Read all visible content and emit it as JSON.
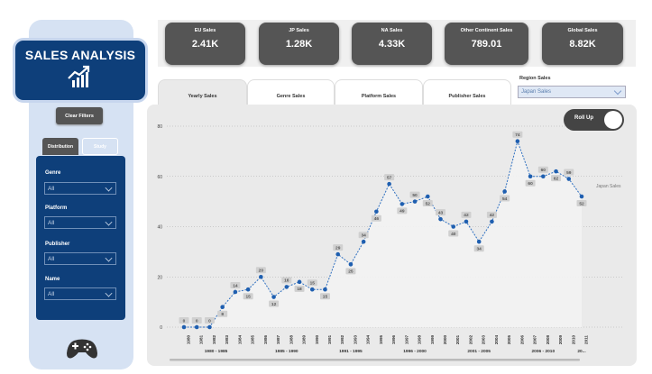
{
  "title": "SALES ANALYSIS",
  "clear_filters_label": "Clear Filters",
  "left_tabs": {
    "distribution": "Distribution",
    "study": "Study"
  },
  "filters": [
    {
      "label": "Genre",
      "value": "All"
    },
    {
      "label": "Platform",
      "value": "All"
    },
    {
      "label": "Publisher",
      "value": "All"
    },
    {
      "label": "Name",
      "value": "All"
    }
  ],
  "kpis": [
    {
      "label": "EU Sales",
      "value": "2.41K"
    },
    {
      "label": "JP Sales",
      "value": "1.28K"
    },
    {
      "label": "NA Sales",
      "value": "4.33K"
    },
    {
      "label": "Other Continent Sales",
      "value": "789.01"
    },
    {
      "label": "Global Sales",
      "value": "8.82K"
    }
  ],
  "tabs": [
    "Yearly Sales",
    "Genre Sales",
    "Platform Sales",
    "Publisher Sales"
  ],
  "region": {
    "label": "Region Sales",
    "value": "Japan Sales"
  },
  "toggle_label": "Roll Up",
  "colors": {
    "navy": "#0e3f7a",
    "card": "#555555",
    "line": "#2d6fc0",
    "panel": "#d6e2f3"
  },
  "chart_data": {
    "type": "line",
    "series_label": "Japan Sales",
    "ylim": [
      0,
      80
    ],
    "yticks": [
      "0",
      "20",
      "40",
      "60",
      "80"
    ],
    "x": [
      "1980",
      "1981",
      "1982",
      "1983",
      "1984",
      "1985",
      "1986",
      "1987",
      "1988",
      "1989",
      "1990",
      "1991",
      "1992",
      "1993",
      "1994",
      "1995",
      "1996",
      "1997",
      "1998",
      "1999",
      "2000",
      "2001",
      "2002",
      "2003",
      "2004",
      "2005",
      "2006",
      "2007",
      "2008",
      "2009",
      "2010",
      "2011"
    ],
    "values": [
      0,
      0,
      0,
      8,
      14,
      15,
      20,
      12,
      16,
      18,
      15,
      15,
      29,
      25,
      34,
      46,
      57,
      49,
      50,
      52,
      43,
      40,
      42,
      34,
      42,
      54,
      74,
      60,
      60,
      62,
      59,
      52
    ],
    "labels": [
      "0",
      "0",
      "0",
      "8",
      "14",
      "15",
      "20",
      "12",
      "16",
      "18",
      "15",
      "15",
      "29",
      "25",
      "34",
      "46",
      "57",
      "49",
      "50",
      "52",
      "43",
      "40",
      "42",
      "34",
      "42",
      "54",
      "74",
      "60",
      "60",
      "62",
      "59",
      "52"
    ],
    "groups": [
      {
        "label": "1980 - 1985",
        "start": 0,
        "end": 5
      },
      {
        "label": "1985 - 1990",
        "start": 6,
        "end": 10
      },
      {
        "label": "1991 - 1995",
        "start": 11,
        "end": 15
      },
      {
        "label": "1996 - 2000",
        "start": 16,
        "end": 20
      },
      {
        "label": "2001 - 2005",
        "start": 21,
        "end": 25
      },
      {
        "label": "2006 - 2010",
        "start": 26,
        "end": 30
      },
      {
        "label": "20...",
        "start": 31,
        "end": 31
      }
    ]
  }
}
